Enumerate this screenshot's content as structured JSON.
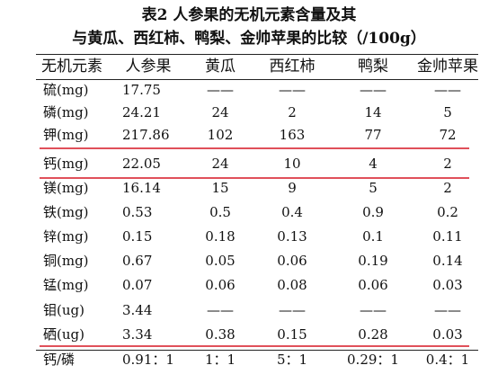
{
  "table": {
    "title": [
      "表2  人参果的无机元素含量及其",
      "与黄瓜、西红柿、鸭梨、金帅苹果的比较（/100g）"
    ],
    "header": [
      "无机元素",
      "人参果",
      "黄瓜",
      "西红柿",
      "鸭梨",
      "金帅苹果"
    ],
    "rows": [
      [
        "硫(mg)",
        "17.75",
        "——",
        "——",
        "——",
        "——"
      ],
      [
        "磷(mg)",
        "24.21",
        "24",
        "2",
        "14",
        "5"
      ],
      [
        "钾(mg)",
        "217.86",
        "102",
        "163",
        "77",
        "72"
      ],
      [
        "钙(mg)",
        "22.05",
        "24",
        "10",
        "4",
        "2"
      ],
      [
        "镁(mg)",
        "16.14",
        "15",
        "9",
        "5",
        "2"
      ],
      [
        "铁(mg)",
        "0.53",
        "0.5",
        "0.4",
        "0.9",
        "0.2"
      ],
      [
        "锌(mg)",
        "0.15",
        "0.18",
        "0.13",
        "0.1",
        "0.11"
      ],
      [
        "铜(mg)",
        "0.67",
        "0.05",
        "0.06",
        "0.19",
        "0.14"
      ],
      [
        "锰(mg)",
        "0.07",
        "0.06",
        "0.08",
        "0.06",
        "0.03"
      ],
      [
        "钼(ug)",
        "3.44",
        "——",
        "——",
        "——",
        "——"
      ],
      [
        "硒(ug)",
        "3.34",
        "0.38",
        "0.15",
        "0.28",
        "0.03"
      ],
      [
        "钙/磷",
        "0.91：1",
        "1：1",
        "5：1",
        "0.29：1",
        "0.4：1"
      ]
    ]
  }
}
